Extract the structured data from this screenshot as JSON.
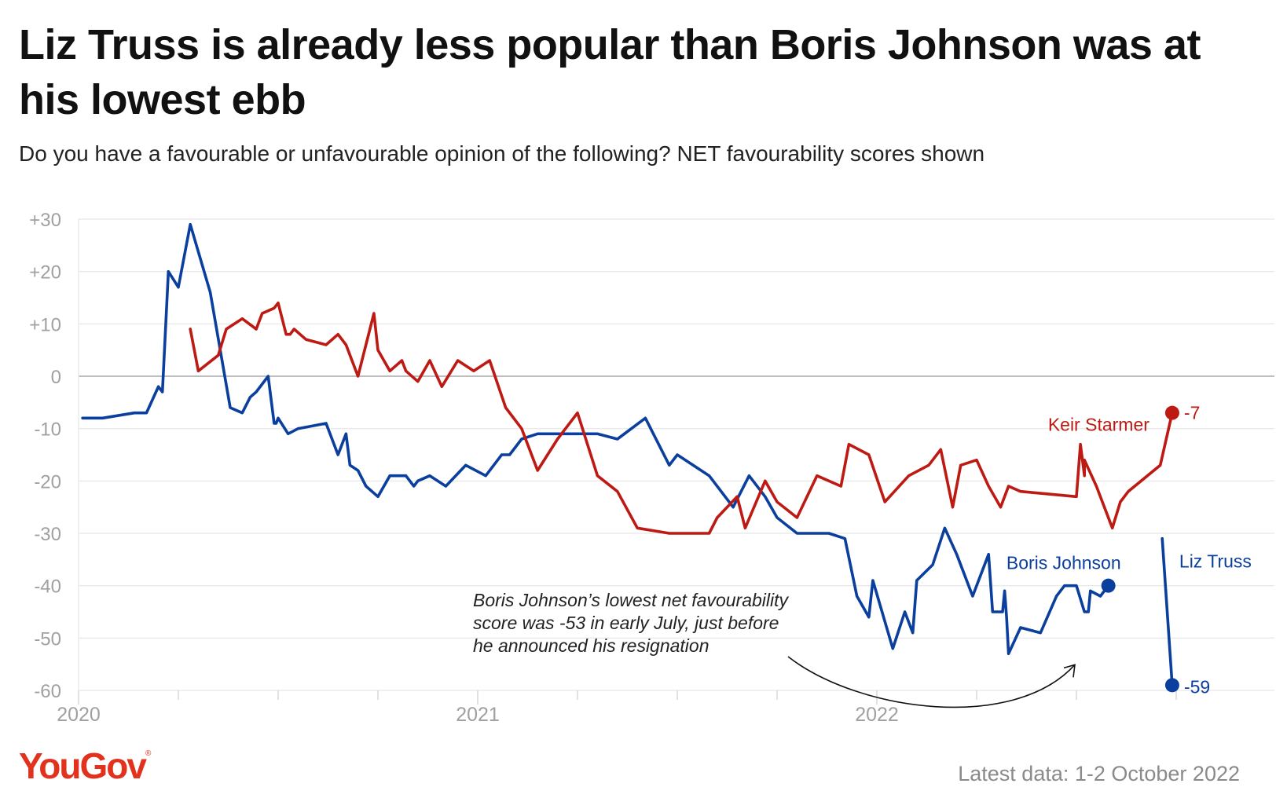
{
  "title": "Liz Truss is already less popular than Boris Johnson was at his lowest ebb",
  "subtitle": "Do you have a favourable or unfavourable opinion of the following? NET favourability scores shown",
  "logo": {
    "text": "YouGov",
    "mark": "®",
    "color": "#e2321e"
  },
  "source": "Latest data: 1-2 October 2022",
  "colors": {
    "johnson": "#0b3f9e",
    "starmer": "#bd1a14",
    "truss": "#0b3f9e",
    "grid": "#e6e6e6",
    "zero": "#a8a8a8",
    "tick": "#a0a0a0"
  },
  "chart_data": {
    "type": "line",
    "title": "Liz Truss is already less popular than Boris Johnson was at his lowest ebb",
    "subtitle": "Do you have a favourable or unfavourable opinion of the following? NET favourability scores shown",
    "ylim": [
      -60,
      30
    ],
    "yticks": [
      30,
      20,
      10,
      0,
      -10,
      -20,
      -30,
      -40,
      -50,
      -60
    ],
    "ytick_labels": [
      "+30",
      "+20",
      "+10",
      "0",
      "-10",
      "-20",
      "-30",
      "-40",
      "-50",
      "-60"
    ],
    "xlim": [
      2020.0,
      2023.0
    ],
    "xticks": [
      2020,
      2021,
      2022
    ],
    "xtick_labels": [
      "2020",
      "2021",
      "2022"
    ],
    "grid": true,
    "series": [
      {
        "name": "Boris Johnson",
        "label": "Boris Johnson",
        "x": [
          2020.01,
          2020.06,
          2020.14,
          2020.17,
          2020.2,
          2020.21,
          2020.225,
          2020.25,
          2020.28,
          2020.33,
          2020.38,
          2020.41,
          2020.43,
          2020.445,
          2020.475,
          2020.49,
          2020.495,
          2020.5,
          2020.5,
          2020.525,
          2020.55,
          2020.62,
          2020.65,
          2020.67,
          2020.68,
          2020.7,
          2020.72,
          2020.75,
          2020.78,
          2020.8,
          2020.82,
          2020.84,
          2020.85,
          2020.88,
          2020.92,
          2020.97,
          2021.02,
          2021.06,
          2021.08,
          2021.11,
          2021.15,
          2021.19,
          2021.3,
          2021.35,
          2021.42,
          2021.48,
          2021.5,
          2021.58,
          2021.64,
          2021.68,
          2021.72,
          2021.75,
          2021.8,
          2021.88,
          2021.92,
          2021.95,
          2021.98,
          2021.99,
          2022.04,
          2022.07,
          2022.09,
          2022.1,
          2022.14,
          2022.17,
          2022.2,
          2022.24,
          2022.28,
          2022.29,
          2022.315,
          2022.32,
          2022.325,
          2022.33,
          2022.36,
          2022.41,
          2022.45,
          2022.47,
          2022.5,
          2022.52,
          2022.53,
          2022.535,
          2022.56,
          2022.58
        ],
        "values": [
          -8,
          -8,
          -7,
          -7,
          -2,
          -3,
          20,
          17,
          29,
          16,
          -6,
          -7,
          -4,
          -3,
          0,
          -9,
          -9,
          -8,
          -8,
          -11,
          -10,
          -9,
          -15,
          -11,
          -17,
          -18,
          -21,
          -23,
          -19,
          -19,
          -19,
          -21,
          -20,
          -19,
          -21,
          -17,
          -19,
          -15,
          -15,
          -12,
          -11,
          -11,
          -11,
          -12,
          -8,
          -17,
          -15,
          -19,
          -25,
          -19,
          -23,
          -27,
          -30,
          -30,
          -31,
          -42,
          -46,
          -39,
          -52,
          -45,
          -49,
          -39,
          -36,
          -29,
          -34,
          -42,
          -34,
          -45,
          -45,
          -41,
          -46,
          -53,
          -48,
          -49,
          -42,
          -40,
          -40,
          -45,
          -45,
          -41,
          -42,
          -40
        ]
      },
      {
        "name": "Keir Starmer",
        "label": "Keir Starmer",
        "end_label": "-7",
        "x": [
          2020.28,
          2020.3,
          2020.35,
          2020.37,
          2020.41,
          2020.445,
          2020.46,
          2020.49,
          2020.5,
          2020.52,
          2020.53,
          2020.54,
          2020.57,
          2020.62,
          2020.65,
          2020.67,
          2020.7,
          2020.74,
          2020.75,
          2020.78,
          2020.81,
          2020.82,
          2020.85,
          2020.88,
          2020.91,
          2020.95,
          2020.99,
          2021.03,
          2021.07,
          2021.11,
          2021.15,
          2021.2,
          2021.25,
          2021.3,
          2021.35,
          2021.4,
          2021.48,
          2021.58,
          2021.6,
          2021.65,
          2021.67,
          2021.72,
          2021.75,
          2021.8,
          2021.85,
          2021.91,
          2021.93,
          2021.98,
          2022.02,
          2022.08,
          2022.13,
          2022.16,
          2022.19,
          2022.21,
          2022.25,
          2022.28,
          2022.31,
          2022.33,
          2022.36,
          2022.5,
          2022.51,
          2022.52,
          2022.52,
          2022.55,
          2022.59,
          2022.61,
          2022.63,
          2022.71,
          2022.74
        ],
        "values": [
          9,
          1,
          4,
          9,
          11,
          9,
          12,
          13,
          14,
          8,
          8,
          9,
          7,
          6,
          8,
          6,
          0,
          12,
          5,
          1,
          3,
          1,
          -1,
          3,
          -2,
          3,
          1,
          3,
          -6,
          -10,
          -18,
          -12,
          -7,
          -19,
          -22,
          -29,
          -30,
          -30,
          -27,
          -23,
          -29,
          -20,
          -24,
          -27,
          -19,
          -21,
          -13,
          -15,
          -24,
          -19,
          -17,
          -14,
          -25,
          -17,
          -16,
          -21,
          -25,
          -21,
          -22,
          -23,
          -13,
          -19,
          -16,
          -21,
          -29,
          -24,
          -22,
          -17,
          -7
        ]
      },
      {
        "name": "Liz Truss",
        "label": "Liz Truss",
        "end_label": "-59",
        "x": [
          2022.715,
          2022.74
        ],
        "values": [
          -31,
          -59
        ]
      }
    ],
    "annotation": {
      "lines": [
        "Boris Johnson’s lowest net favourability",
        "score was -53 in early July, just before",
        "he announced his resignation"
      ],
      "target": {
        "x": 2022.5,
        "y": -53
      }
    }
  }
}
